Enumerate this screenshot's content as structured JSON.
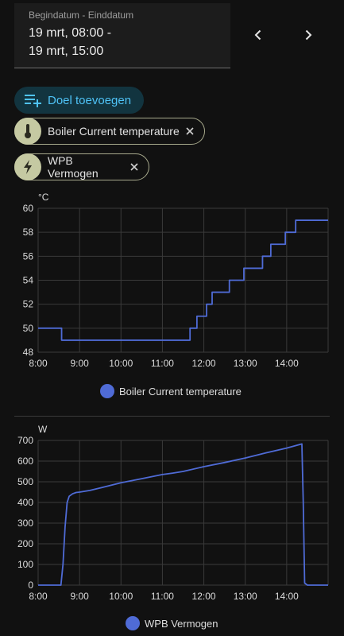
{
  "date_range": {
    "label": "Begindatum - Einddatum",
    "start": "19 mrt, 08:00 -",
    "end": "19 mrt, 15:00"
  },
  "add_target": {
    "label": "Doel toevoegen"
  },
  "chips": [
    {
      "label": "Boiler Current temperature",
      "icon": "thermometer-icon"
    },
    {
      "label": "WPB Vermogen",
      "icon": "lightning-icon"
    }
  ],
  "colors": {
    "series": "#4f6bd6",
    "accent": "#4fc3f7",
    "chip_icon_bg": "#c5c9a2"
  },
  "chart_data": [
    {
      "type": "line",
      "ylabel": "°C",
      "x_ticks": [
        "8:00",
        "9:00",
        "10:00",
        "11:00",
        "12:00",
        "13:00",
        "14:00"
      ],
      "y_ticks": [
        "48",
        "50",
        "52",
        "54",
        "56",
        "58",
        "60"
      ],
      "ylim": [
        48,
        60
      ],
      "xlim": [
        "08:00",
        "15:00"
      ],
      "grid": true,
      "legend": "bottom",
      "series": [
        {
          "name": "Boiler Current temperature",
          "step": true,
          "points": [
            [
              "08:00",
              50
            ],
            [
              "08:34",
              49
            ],
            [
              "11:40",
              50
            ],
            [
              "11:50",
              51
            ],
            [
              "12:04",
              52
            ],
            [
              "12:12",
              53
            ],
            [
              "12:37",
              54
            ],
            [
              "12:58",
              55
            ],
            [
              "13:25",
              56
            ],
            [
              "13:37",
              57
            ],
            [
              "13:58",
              58
            ],
            [
              "14:13",
              59
            ],
            [
              "15:00",
              59
            ]
          ]
        }
      ]
    },
    {
      "type": "line",
      "ylabel": "W",
      "x_ticks": [
        "8:00",
        "9:00",
        "10:00",
        "11:00",
        "12:00",
        "13:00",
        "14:00"
      ],
      "y_ticks": [
        "0",
        "100",
        "200",
        "300",
        "400",
        "500",
        "600",
        "700"
      ],
      "ylim": [
        0,
        700
      ],
      "xlim": [
        "08:00",
        "15:00"
      ],
      "grid": true,
      "legend": "bottom",
      "series": [
        {
          "name": "WPB Vermogen",
          "points": [
            [
              "08:00",
              0
            ],
            [
              "08:33",
              0
            ],
            [
              "08:36",
              100
            ],
            [
              "08:39",
              280
            ],
            [
              "08:42",
              400
            ],
            [
              "08:45",
              430
            ],
            [
              "08:50",
              442
            ],
            [
              "08:55",
              448
            ],
            [
              "09:00",
              450
            ],
            [
              "09:15",
              458
            ],
            [
              "09:30",
              470
            ],
            [
              "10:00",
              495
            ],
            [
              "10:30",
              515
            ],
            [
              "11:00",
              535
            ],
            [
              "11:15",
              542
            ],
            [
              "11:30",
              550
            ],
            [
              "12:00",
              573
            ],
            [
              "12:30",
              593
            ],
            [
              "13:00",
              615
            ],
            [
              "13:30",
              640
            ],
            [
              "14:00",
              663
            ],
            [
              "14:22",
              683
            ],
            [
              "14:24",
              400
            ],
            [
              "14:26",
              10
            ],
            [
              "14:30",
              0
            ],
            [
              "15:00",
              0
            ]
          ]
        }
      ]
    }
  ]
}
